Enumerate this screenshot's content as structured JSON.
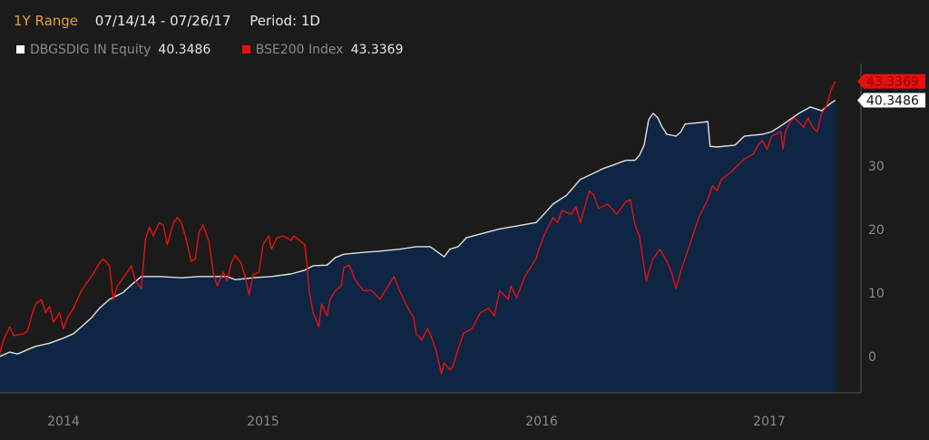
{
  "header": {
    "range_label": "1Y Range",
    "dates": "07/14/14 - 07/26/17",
    "period": "Period: 1D"
  },
  "legend": [
    {
      "name": "DBGSDIG IN Equity",
      "value": "40.3486",
      "color": "#ffffff"
    },
    {
      "name": "BSE200 Index",
      "value": "43.3369",
      "color": "#e8100e"
    }
  ],
  "chart_data": {
    "type": "line",
    "title": "",
    "xlabel": "",
    "ylabel": "",
    "ylim": [
      -5.7,
      49
    ],
    "yticks": [
      "0",
      "10",
      "20",
      "30"
    ],
    "ytick_values": [
      0,
      10,
      20,
      30
    ],
    "xticks": [
      "2014",
      "2015",
      "2016",
      "2017"
    ],
    "xtick_values": [
      2014,
      2015,
      2016,
      2017
    ],
    "grid": false,
    "axis_side": "right",
    "background": "#1b1b1b",
    "fill_color": "#0e2543",
    "series": [
      {
        "name": "DBGSDIG IN Equity",
        "color": "#e0e0e0",
        "filled": true,
        "last_label": "40.3486",
        "x": [
          2013.68,
          2013.73,
          2013.77,
          2013.82,
          2013.86,
          2013.93,
          2014.0,
          2014.05,
          2014.09,
          2014.14,
          2014.18,
          2014.23,
          2014.3,
          2014.34,
          2014.39,
          2014.48,
          2014.59,
          2014.68,
          2014.82,
          2014.86,
          2014.95,
          2015.03,
          2015.1,
          2015.15,
          2015.18,
          2015.23,
          2015.26,
          2015.29,
          2015.36,
          2015.42,
          2015.49,
          2015.55,
          2015.6,
          2015.65,
          2015.67,
          2015.7,
          2015.73,
          2015.78,
          2015.85,
          2015.93,
          2015.98,
          2016.01,
          2016.05,
          2016.11,
          2016.17,
          2016.23,
          2016.27,
          2016.31,
          2016.37,
          2016.41,
          2016.43,
          2016.45,
          2016.47,
          2016.49,
          2016.51,
          2016.53,
          2016.55,
          2016.59,
          2016.61,
          2016.63,
          2016.71,
          2016.73,
          2016.74,
          2016.77,
          2016.85,
          2016.89,
          2016.97,
          2017.01,
          2017.05,
          2017.13,
          2017.18,
          2017.23,
          2017.27,
          2017.29
        ],
        "y": [
          0.0,
          0.7,
          0.4,
          1.1,
          1.6,
          2.1,
          2.9,
          3.6,
          4.7,
          6.1,
          7.6,
          9.0,
          10.1,
          11.3,
          12.6,
          12.6,
          12.4,
          12.6,
          12.6,
          12.1,
          12.4,
          12.6,
          13.0,
          13.6,
          14.3,
          14.4,
          15.6,
          16.1,
          16.4,
          16.6,
          16.9,
          17.3,
          17.3,
          15.7,
          16.9,
          17.3,
          18.7,
          19.3,
          20.1,
          20.7,
          21.1,
          22.4,
          24.0,
          25.4,
          27.9,
          28.9,
          29.6,
          30.1,
          30.9,
          30.9,
          31.7,
          33.3,
          37.3,
          38.3,
          37.6,
          36.1,
          35.0,
          34.7,
          35.3,
          36.6,
          36.9,
          37.0,
          33.1,
          33.0,
          33.3,
          34.7,
          35.0,
          35.4,
          36.3,
          38.3,
          39.3,
          38.7,
          39.9,
          40.3486
        ]
      },
      {
        "name": "BSE200 Index",
        "color": "#e8100e",
        "filled": false,
        "last_label": "43.3369",
        "x": [
          2013.68,
          2013.7,
          2013.73,
          2013.75,
          2013.8,
          2013.82,
          2013.84,
          2013.86,
          2013.89,
          2013.91,
          2013.93,
          2013.95,
          2013.98,
          2014.0,
          2014.02,
          2014.05,
          2014.09,
          2014.14,
          2014.18,
          2014.2,
          2014.23,
          2014.25,
          2014.27,
          2014.32,
          2014.34,
          2014.36,
          2014.39,
          2014.41,
          2014.43,
          2014.45,
          2014.48,
          2014.5,
          2014.52,
          2014.55,
          2014.57,
          2014.59,
          2014.61,
          2014.64,
          2014.66,
          2014.68,
          2014.7,
          2014.73,
          2014.75,
          2014.77,
          2014.8,
          2014.82,
          2014.84,
          2014.86,
          2014.89,
          2014.91,
          2014.93,
          2014.95,
          2014.98,
          2015.0,
          2015.02,
          2015.03,
          2015.05,
          2015.07,
          2015.1,
          2015.11,
          2015.15,
          2015.16,
          2015.165,
          2015.18,
          2015.2,
          2015.21,
          2015.23,
          2015.24,
          2015.26,
          2015.28,
          2015.29,
          2015.31,
          2015.33,
          2015.36,
          2015.39,
          2015.42,
          2015.46,
          2015.47,
          2015.49,
          2015.52,
          2015.54,
          2015.55,
          2015.57,
          2015.59,
          2015.6,
          2015.62,
          2015.64,
          2015.65,
          2015.67,
          2015.68,
          2015.7,
          2015.72,
          2015.75,
          2015.78,
          2015.81,
          2015.83,
          2015.85,
          2015.88,
          2015.89,
          2015.91,
          2015.94,
          2015.98,
          2015.99,
          2016.01,
          2016.05,
          2016.07,
          2016.09,
          2016.13,
          2016.15,
          2016.17,
          2016.21,
          2016.23,
          2016.25,
          2016.29,
          2016.33,
          2016.37,
          2016.39,
          2016.41,
          2016.43,
          2016.45,
          2016.46,
          2016.47,
          2016.49,
          2016.52,
          2016.55,
          2016.57,
          2016.59,
          2016.61,
          2016.65,
          2016.69,
          2016.73,
          2016.75,
          2016.77,
          2016.79,
          2016.83,
          2016.85,
          2016.89,
          2016.93,
          2016.95,
          2016.97,
          2016.99,
          2017.01,
          2017.05,
          2017.06,
          2017.07,
          2017.09,
          2017.11,
          2017.13,
          2017.15,
          2017.17,
          2017.19,
          2017.21,
          2017.23,
          2017.25,
          2017.27,
          2017.29
        ],
        "y": [
          0.4,
          2.6,
          4.7,
          3.3,
          3.6,
          4.0,
          6.4,
          8.3,
          9.0,
          6.9,
          7.9,
          5.4,
          6.9,
          4.4,
          6.1,
          7.6,
          10.4,
          12.6,
          14.7,
          15.4,
          14.3,
          9.0,
          11.1,
          13.3,
          14.3,
          11.9,
          10.7,
          18.3,
          20.4,
          19.0,
          21.1,
          20.7,
          17.6,
          21.0,
          21.9,
          21.1,
          19.0,
          15.0,
          15.4,
          19.7,
          20.7,
          17.9,
          13.3,
          11.1,
          13.3,
          11.9,
          14.7,
          15.9,
          14.7,
          12.6,
          9.7,
          12.9,
          13.3,
          17.6,
          19.0,
          16.9,
          18.7,
          19.0,
          18.3,
          19.0,
          17.6,
          13.3,
          10.4,
          6.9,
          4.7,
          8.3,
          6.4,
          9.0,
          10.4,
          11.1,
          14.0,
          14.4,
          12.1,
          10.4,
          10.4,
          9.0,
          11.9,
          12.6,
          10.4,
          7.6,
          6.1,
          3.6,
          2.6,
          4.4,
          3.6,
          1.1,
          -2.7,
          -1.0,
          -2.1,
          -1.7,
          1.1,
          3.7,
          4.4,
          6.9,
          7.6,
          6.4,
          10.4,
          9.0,
          11.1,
          9.3,
          12.6,
          15.4,
          16.9,
          19.0,
          21.9,
          21.1,
          23.0,
          22.4,
          23.6,
          21.1,
          26.1,
          25.4,
          23.3,
          24.0,
          22.4,
          24.4,
          24.7,
          20.7,
          19.0,
          14.0,
          11.9,
          13.3,
          15.4,
          16.9,
          15.0,
          13.3,
          10.7,
          13.3,
          17.6,
          21.9,
          24.7,
          26.9,
          26.1,
          27.9,
          29.0,
          29.7,
          31.1,
          31.9,
          33.3,
          34.0,
          32.6,
          34.7,
          35.4,
          32.7,
          35.4,
          36.9,
          37.6,
          36.9,
          36.1,
          37.6,
          36.1,
          35.4,
          38.3,
          39.3,
          41.9,
          43.3369
        ]
      }
    ]
  }
}
